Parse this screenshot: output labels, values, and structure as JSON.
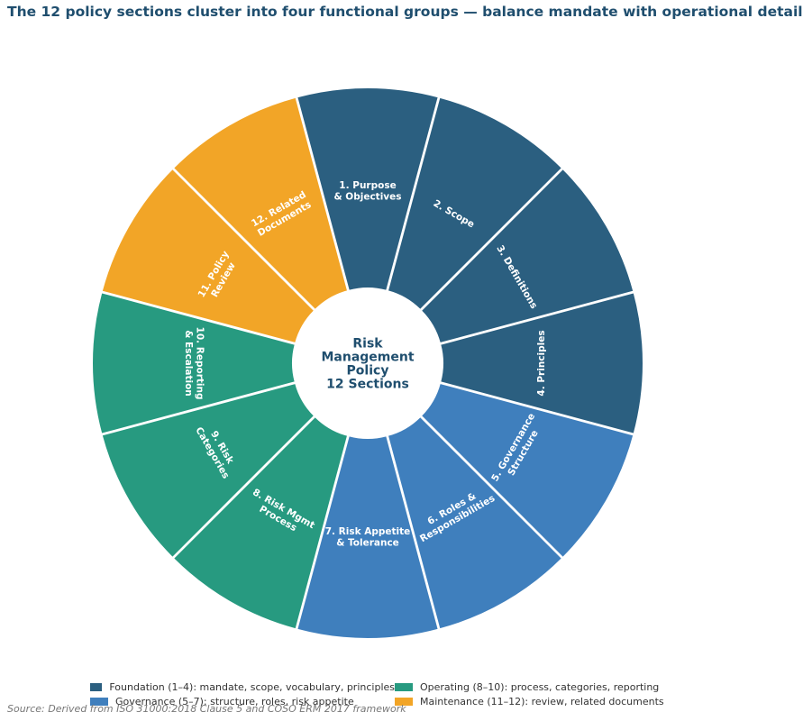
{
  "title": "The 12 policy sections cluster into four functional groups — balance mandate with operational detail",
  "chart_data": {
    "type": "pie",
    "variant": "donut",
    "center_label": [
      "Risk",
      "Management",
      "Policy",
      "12 Sections"
    ],
    "segments": [
      {
        "label": [
          "1. Purpose",
          "& Objectives"
        ],
        "value": 1,
        "group": 0
      },
      {
        "label": [
          "2. Scope"
        ],
        "value": 1,
        "group": 0
      },
      {
        "label": [
          "3. Definitions"
        ],
        "value": 1,
        "group": 0
      },
      {
        "label": [
          "4. Principles"
        ],
        "value": 1,
        "group": 0
      },
      {
        "label": [
          "5. Governance",
          "Structure"
        ],
        "value": 1,
        "group": 1
      },
      {
        "label": [
          "6. Roles &",
          "Responsibilities"
        ],
        "value": 1,
        "group": 1
      },
      {
        "label": [
          "7. Risk Appetite",
          "& Tolerance"
        ],
        "value": 1,
        "group": 1
      },
      {
        "label": [
          "8. Risk Mgmt",
          "Process"
        ],
        "value": 1,
        "group": 2
      },
      {
        "label": [
          "9. Risk",
          "Categories"
        ],
        "value": 1,
        "group": 2
      },
      {
        "label": [
          "10. Reporting",
          "& Escalation"
        ],
        "value": 1,
        "group": 2
      },
      {
        "label": [
          "11. Policy",
          "Review"
        ],
        "value": 1,
        "group": 3
      },
      {
        "label": [
          "12. Related",
          "Documents"
        ],
        "value": 1,
        "group": 3
      }
    ],
    "groups": [
      {
        "name": "Foundation (1–4): mandate, scope, vocabulary, principles",
        "color": "#2b5f80"
      },
      {
        "name": "Governance (5–7): structure, roles, risk appetite",
        "color": "#3f7fbd"
      },
      {
        "name": "Operating (8–10): process, categories, reporting",
        "color": "#279a80"
      },
      {
        "name": "Maintenance (11–12): review, related documents",
        "color": "#f2a527"
      }
    ],
    "legend_position": "bottom"
  },
  "source": "Source: Derived from ISO 31000:2018 Clause 5 and COSO ERM 2017 framework"
}
